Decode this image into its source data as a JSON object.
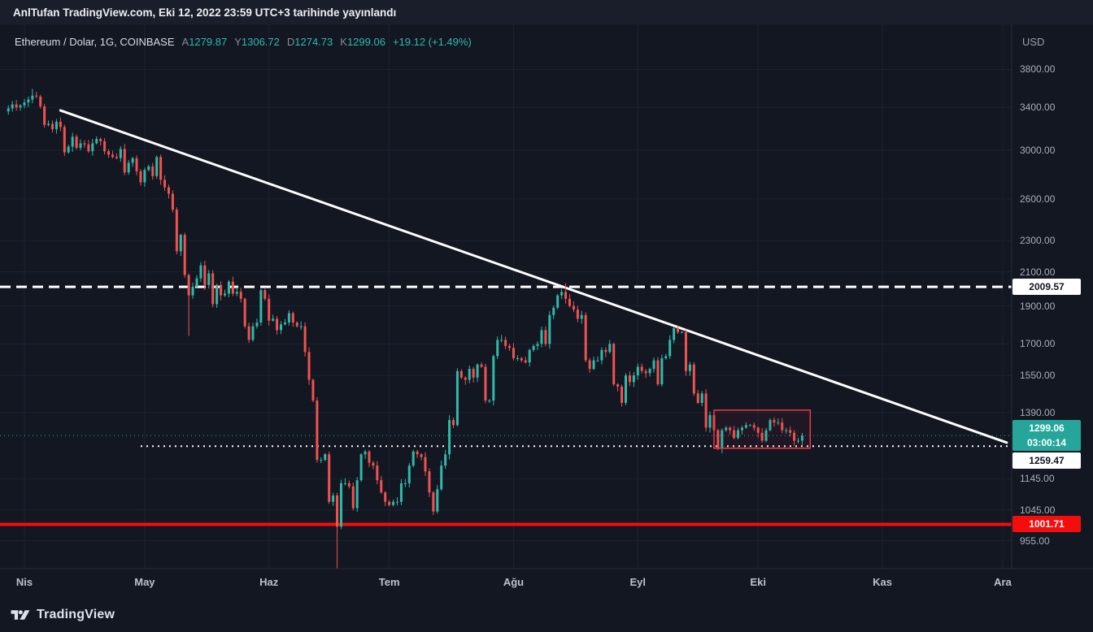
{
  "banner": {
    "text": "AnlTufan TradingView.com, Eki 12, 2022 23:59 UTC+3 tarihinde yayınlandı"
  },
  "header": {
    "symbol_title": "Ethereum / Dolar, 1G, COINBASE",
    "ohlc": {
      "open_label": "A",
      "open": "1279.87",
      "high_label": "Y",
      "high": "1306.72",
      "low_label": "D",
      "low": "1274.73",
      "close_label": "K",
      "close": "1299.06",
      "change": "+19.12 (+1.49%)"
    }
  },
  "price_axis": {
    "currency": "USD",
    "ticks": [
      "3800.00",
      "3400.00",
      "3000.00",
      "2600.00",
      "2300.00",
      "2100.00",
      "1900.00",
      "1700.00",
      "1550.00",
      "1390.00",
      "1145.00",
      "1045.00",
      "955.00"
    ],
    "badges": {
      "resistance": {
        "value": "2009.57",
        "bg": "#ffffff",
        "fg": "#0f1420"
      },
      "last_price": {
        "value": "1299.06",
        "countdown": "03:00:14",
        "bg": "#26a69a",
        "fg": "#ffffff"
      },
      "recent_low": {
        "value": "1259.47",
        "bg": "#ffffff",
        "fg": "#0f1420"
      },
      "support": {
        "value": "1001.71",
        "bg": "#f50d0d",
        "fg": "#ffffff"
      }
    }
  },
  "time_axis": {
    "months": [
      {
        "label": "Nis",
        "date": "2022-04-01"
      },
      {
        "label": "May",
        "date": "2022-05-01"
      },
      {
        "label": "Haz",
        "date": "2022-06-01"
      },
      {
        "label": "Tem",
        "date": "2022-07-01"
      },
      {
        "label": "Ağu",
        "date": "2022-08-01"
      },
      {
        "label": "Eyl",
        "date": "2022-09-01"
      },
      {
        "label": "Eki",
        "date": "2022-10-01"
      },
      {
        "label": "Kas",
        "date": "2022-11-01"
      },
      {
        "label": "Ara",
        "date": "2022-12-01"
      }
    ]
  },
  "footer": {
    "logo_text": "TradingView"
  },
  "chart_data": {
    "type": "candlestick",
    "symbol": "Ethereum / Dolar",
    "interval": "1G",
    "exchange": "COINBASE",
    "currency": "USD",
    "scale": "log",
    "last_bar": {
      "open": 1279.87,
      "high": 1306.72,
      "low": 1274.73,
      "close": 1299.06,
      "change": 19.12,
      "change_pct": 1.49
    },
    "start_date": "2022-03-28",
    "first_open": 3360,
    "closes": [
      3390,
      3430,
      3400,
      3420,
      3450,
      3480,
      3520,
      3510,
      3410,
      3230,
      3240,
      3190,
      3260,
      3210,
      2980,
      3030,
      3120,
      3020,
      3060,
      3050,
      2990,
      3060,
      3100,
      3080,
      2990,
      2960,
      2940,
      2930,
      3010,
      2810,
      2890,
      2930,
      2820,
      2730,
      2830,
      2860,
      2780,
      2940,
      2750,
      2690,
      2640,
      2520,
      2230,
      2340,
      2080,
      1960,
      2010,
      2060,
      2140,
      2020,
      2090,
      1910,
      2020,
      1960,
      1970,
      2040,
      1970,
      1980,
      1940,
      1790,
      1720,
      1790,
      1810,
      1990,
      1940,
      1820,
      1830,
      1770,
      1800,
      1810,
      1860,
      1810,
      1790,
      1790,
      1660,
      1530,
      1440,
      1210,
      1210,
      1230,
      1070,
      1090,
      995,
      1130,
      1130,
      1120,
      1050,
      1140,
      1230,
      1240,
      1200,
      1190,
      1140,
      1100,
      1070,
      1060,
      1070,
      1070,
      1130,
      1130,
      1190,
      1240,
      1230,
      1220,
      1170,
      1100,
      1040,
      1110,
      1190,
      1230,
      1360,
      1340,
      1570,
      1540,
      1530,
      1580,
      1540,
      1600,
      1590,
      1440,
      1440,
      1640,
      1720,
      1720,
      1690,
      1680,
      1630,
      1630,
      1620,
      1610,
      1670,
      1690,
      1700,
      1770,
      1700,
      1850,
      1890,
      1960,
      1980,
      1940,
      1900,
      1880,
      1830,
      1850,
      1620,
      1580,
      1620,
      1620,
      1670,
      1660,
      1700,
      1510,
      1500,
      1430,
      1550,
      1520,
      1550,
      1590,
      1570,
      1560,
      1580,
      1620,
      1510,
      1630,
      1640,
      1720,
      1780,
      1760,
      1760,
      1570,
      1600,
      1470,
      1430,
      1470,
      1330,
      1380,
      1320,
      1250,
      1320,
      1330,
      1320,
      1290,
      1320,
      1330,
      1340,
      1340,
      1330,
      1310,
      1280,
      1320,
      1360,
      1350,
      1350,
      1320,
      1320,
      1310,
      1280,
      1280,
      1299.06
    ],
    "high_overrides": {
      "6": 3590,
      "139": 2030
    },
    "low_overrides": {
      "45": 1740,
      "82": 881,
      "177": 1245,
      "196": 1262
    },
    "up_color": "#31b8a8",
    "down_color": "#ef5350",
    "levels": [
      {
        "name": "resistance-dashed",
        "price": 2009.57,
        "style": "dashed",
        "color": "#ffffff",
        "width": 3
      },
      {
        "name": "current-price-line",
        "price": 1299.06,
        "style": "dotted",
        "color": "#26a69a",
        "width": 1
      },
      {
        "name": "recent-low-dotted",
        "price": 1259.47,
        "style": "dotted",
        "color": "#ffffff",
        "width": 2,
        "start_date": "2022-04-30"
      },
      {
        "name": "support-solid",
        "price": 1001.71,
        "style": "solid",
        "color": "#f50d0d",
        "width": 4
      }
    ],
    "trendline": {
      "date1": "2022-04-10",
      "price1": 3370,
      "date2": "2022-12-02",
      "price2": 1273,
      "color": "#ffffff",
      "width": 3
    },
    "highlight_box": {
      "date1": "2022-09-20",
      "date2": "2022-10-14",
      "price_top": 1400,
      "price_bottom": 1252,
      "color": "#f23645"
    }
  }
}
